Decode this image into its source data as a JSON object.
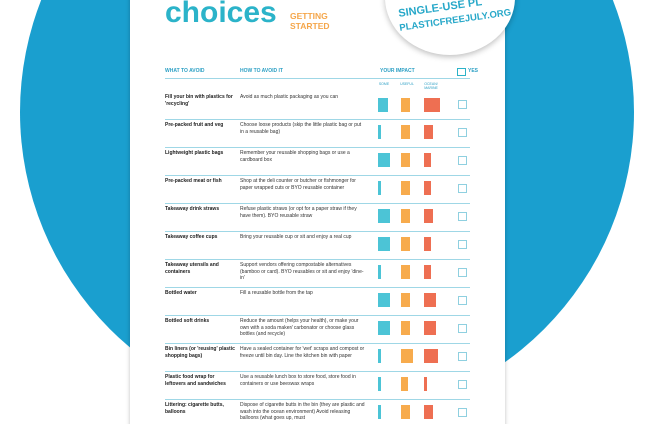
{
  "header": {
    "title": "choices",
    "subtitle": "GETTING STARTED",
    "badge": {
      "line1": "SINGLE-USE PL",
      "line2": "PLASTICFREEJULY.ORG"
    }
  },
  "table": {
    "columns": {
      "avoid": "WHAT TO AVOID",
      "how": "HOW TO AVOID IT",
      "impact": "YOUR IMPACT",
      "done": "YES"
    },
    "impact_levels": [
      "SOME",
      "USEFUL",
      "OCEAN/ MARINE"
    ],
    "rows": [
      [
        "Fill your bin with plastics for 'recycling'",
        "Avoid as much plastic packaging as you can"
      ],
      [
        "Pre-packed fruit and veg",
        "Choose loose products (skip the little plastic bag or put in a reusable bag)"
      ],
      [
        "Lightweight plastic bags",
        "Remember your reusable shopping bags or use a cardboard box"
      ],
      [
        "Pre-packed meat or fish",
        "Shop at the deli counter or butcher or fishmonger for paper wrapped cuts or BYO reusable container"
      ],
      [
        "Takeaway drink straws",
        "Refuse plastic straws (or opt for a paper straw if they have them). BYO reusable straw"
      ],
      [
        "Takeaway coffee cups",
        "Bring your reusable cup or sit and enjoy a real cup"
      ],
      [
        "Takeaway utensils and containers",
        "Support vendors offering compostable alternatives (bamboo or card). BYO reusables or sit and enjoy 'dine-in'"
      ],
      [
        "Bottled water",
        "Fill a reusable bottle from the tap"
      ],
      [
        "Bottled soft drinks",
        "Reduce the amount (helps your health), or make your own with a soda maker/ carbonator or choose glass bottles (and recycle)"
      ],
      [
        "Bin liners (or 'reusing' plastic shopping bags)",
        "Have a sealed container for 'wet' scraps and compost or freeze until bin day. Line the kitchen bin with paper"
      ],
      [
        "Plastic food wrap for leftovers and sandwiches",
        "Use a reusable lunch box to store food, store food in containers or use beeswax wraps"
      ],
      [
        "Littering: cigarette butts, balloons",
        "Dispose of cigarette butts in the bin (they are plastic and wash into the ocean environment) Avoid releasing balloons (what goes up, must"
      ]
    ]
  }
}
